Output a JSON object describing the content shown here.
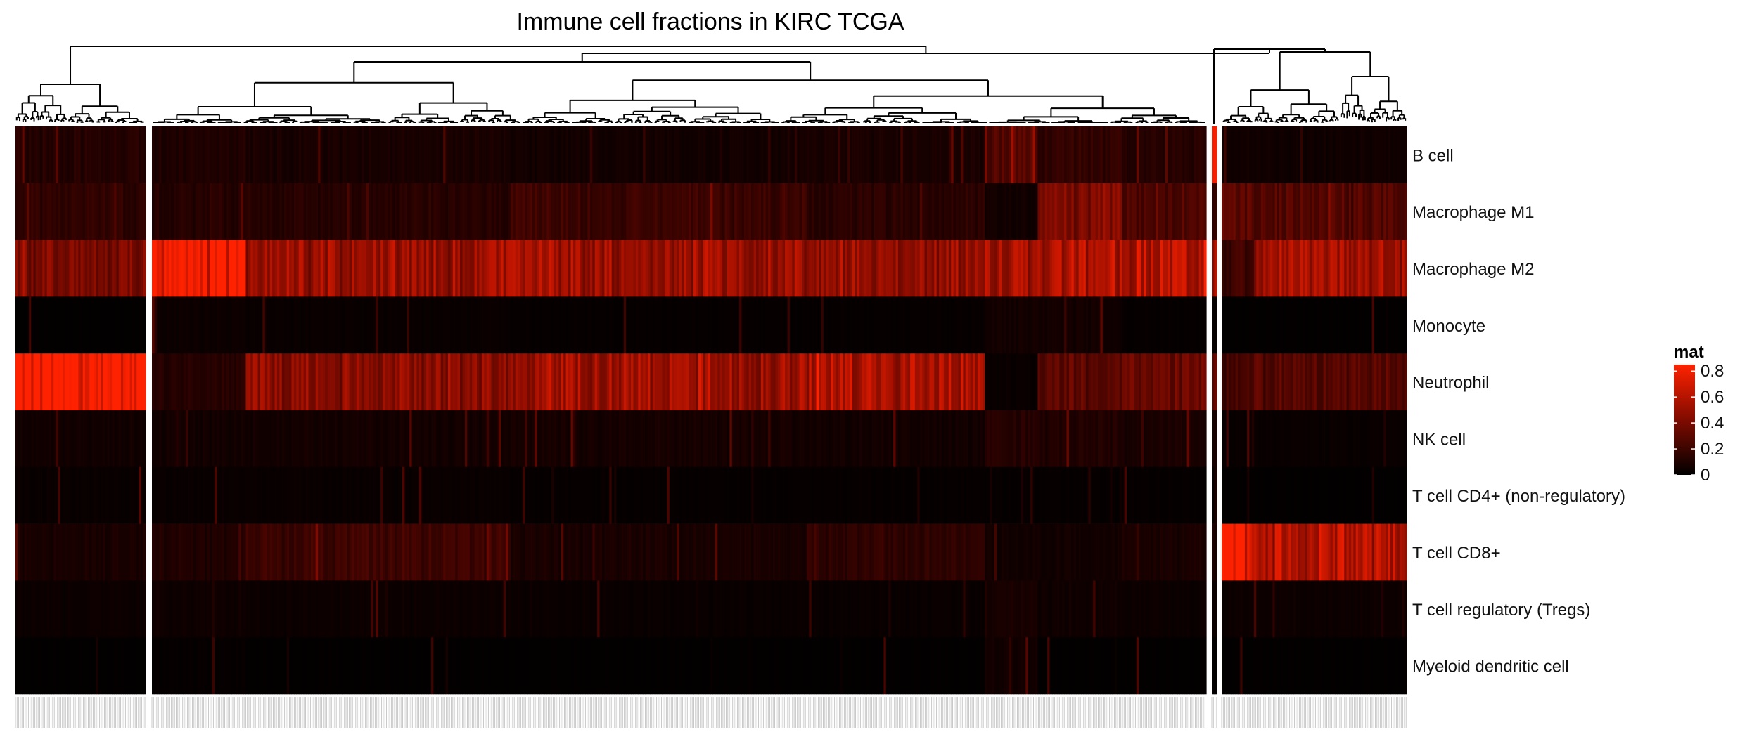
{
  "chart_data": {
    "type": "heatmap",
    "title": "Immune cell fractions in KIRC TCGA",
    "rows": [
      "B cell",
      "Macrophage M1",
      "Macrophage M2",
      "Monocyte",
      "Neutrophil",
      "NK cell",
      "T cell CD4+ (non-regulatory)",
      "T cell CD8+",
      "T cell regulatory (Tregs)",
      "Myeloid dendritic cell"
    ],
    "legend": {
      "title": "mat",
      "ticks": [
        "0.8",
        "0.6",
        "0.4",
        "0.2",
        "0"
      ],
      "tick_values": [
        0.8,
        0.6,
        0.4,
        0.2,
        0
      ],
      "range": [
        0,
        0.85
      ],
      "colors": [
        "#000000",
        "#ff2200"
      ],
      "placement": "right"
    },
    "column_clusters": [
      {
        "id": "A",
        "n_samples": 58,
        "row_means": [
          0.12,
          0.16,
          0.4,
          0.01,
          0.86,
          0.06,
          0.03,
          0.08,
          0.04,
          0.01
        ],
        "segments": []
      },
      {
        "id": "B",
        "n_samples": 438,
        "row_means": [
          0.1,
          0.14,
          0.52,
          0.03,
          0.48,
          0.07,
          0.02,
          0.14,
          0.04,
          0.02
        ],
        "segments": [
          {
            "start": 0.0,
            "end": 0.09,
            "row_means": [
              0.1,
              0.12,
              0.8,
              0.04,
              0.12,
              0.06,
              0.03,
              0.1,
              0.05,
              0.02
            ]
          },
          {
            "start": 0.09,
            "end": 0.34,
            "row_means": [
              0.08,
              0.12,
              0.5,
              0.03,
              0.46,
              0.06,
              0.03,
              0.2,
              0.04,
              0.01
            ]
          },
          {
            "start": 0.34,
            "end": 0.62,
            "row_means": [
              0.06,
              0.2,
              0.52,
              0.02,
              0.52,
              0.07,
              0.02,
              0.08,
              0.03,
              0.01
            ]
          },
          {
            "start": 0.62,
            "end": 0.79,
            "row_means": [
              0.08,
              0.14,
              0.5,
              0.02,
              0.56,
              0.06,
              0.02,
              0.15,
              0.03,
              0.01
            ]
          },
          {
            "start": 0.79,
            "end": 0.84,
            "row_means": [
              0.3,
              0.06,
              0.55,
              0.06,
              0.03,
              0.12,
              0.02,
              0.06,
              0.08,
              0.06
            ]
          },
          {
            "start": 0.84,
            "end": 0.92,
            "row_means": [
              0.16,
              0.4,
              0.58,
              0.06,
              0.3,
              0.1,
              0.02,
              0.06,
              0.05,
              0.01
            ]
          },
          {
            "start": 0.92,
            "end": 1.0,
            "row_means": [
              0.12,
              0.26,
              0.62,
              0.02,
              0.35,
              0.08,
              0.02,
              0.08,
              0.04,
              0.01
            ]
          }
        ]
      },
      {
        "id": "C",
        "n_samples": 2,
        "row_means": [
          0.85,
          0.2,
          0.6,
          0.02,
          0.3,
          0.06,
          0.02,
          0.08,
          0.04,
          0.01
        ],
        "segments": []
      },
      {
        "id": "D",
        "n_samples": 80,
        "row_means": [
          0.05,
          0.26,
          0.52,
          0.01,
          0.28,
          0.03,
          0.01,
          0.58,
          0.04,
          0.01
        ],
        "segments": [
          {
            "start": 0.0,
            "end": 0.18,
            "row_means": [
              0.05,
              0.32,
              0.2,
              0.01,
              0.22,
              0.03,
              0.01,
              0.85,
              0.04,
              0.01
            ]
          }
        ]
      }
    ]
  }
}
